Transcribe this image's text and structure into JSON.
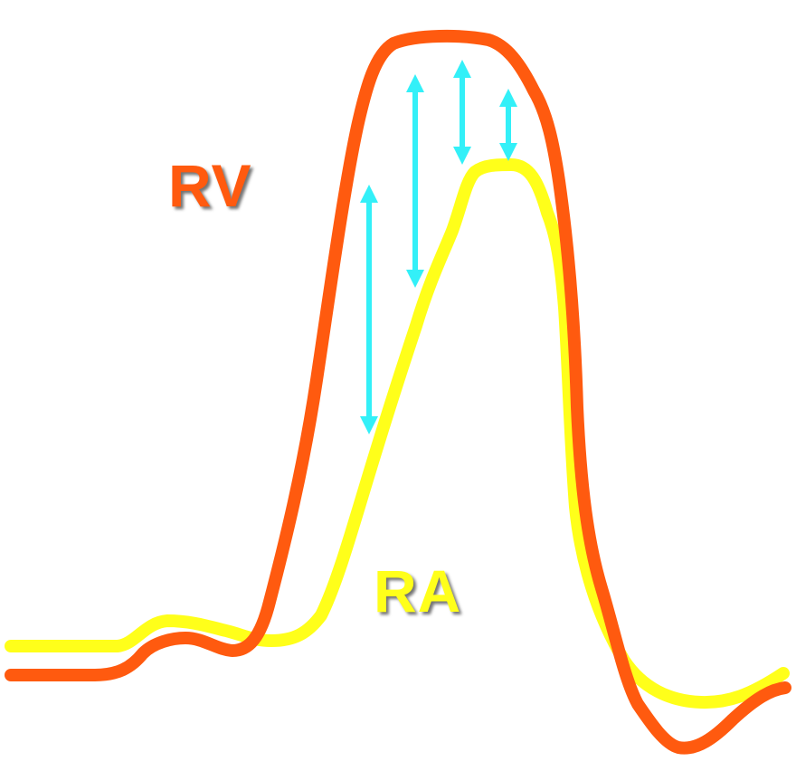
{
  "labels": {
    "rv": "RV",
    "ra": "RA"
  },
  "colors": {
    "rv": "#ff5a0f",
    "ra": "#ffff1a",
    "arrow": "#33f0f8",
    "background": "#ffffff"
  }
}
